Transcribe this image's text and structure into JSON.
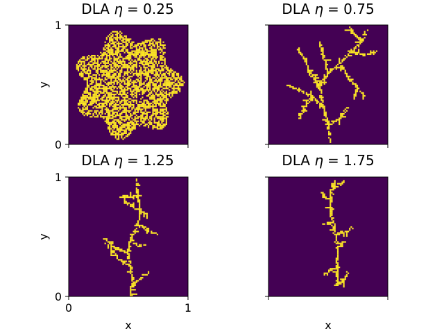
{
  "figure": {
    "background": "#ffffff",
    "cmap": {
      "low": "#440154",
      "high": "#fde725"
    },
    "panels": [
      {
        "id": "p025",
        "title_prefix": "DLA ",
        "title_symbol": "η",
        "title_value": "= 0.25"
      },
      {
        "id": "p075",
        "title_prefix": "DLA ",
        "title_symbol": "η",
        "title_value": "= 0.75"
      },
      {
        "id": "p125",
        "title_prefix": "DLA ",
        "title_symbol": "η",
        "title_value": "= 1.25"
      },
      {
        "id": "p175",
        "title_prefix": "DLA ",
        "title_symbol": "η",
        "title_value": "= 1.75"
      }
    ]
  },
  "chart_data": [
    {
      "type": "heatmap",
      "title": "DLA η = 0.25",
      "xlabel": "",
      "ylabel": "y",
      "xlim": [
        0,
        1
      ],
      "ylim": [
        0,
        1
      ],
      "xticks": [],
      "yticks": [
        "0",
        "1"
      ],
      "cluster": {
        "kind": "dense-disk",
        "center": [
          0.5,
          0.5
        ],
        "radius": 0.46,
        "seed": 11
      }
    },
    {
      "type": "heatmap",
      "title": "DLA η = 0.75",
      "xlabel": "",
      "ylabel": "",
      "xlim": [
        0,
        1
      ],
      "ylim": [
        0,
        1
      ],
      "xticks": [],
      "yticks": [],
      "cluster": {
        "kind": "branches",
        "seed": 23,
        "paths": [
          [
            [
              0.52,
              0.02
            ],
            [
              0.5,
              0.15
            ],
            [
              0.46,
              0.32
            ],
            [
              0.43,
              0.48
            ],
            [
              0.5,
              0.6
            ],
            [
              0.6,
              0.68
            ],
            [
              0.7,
              0.78
            ],
            [
              0.78,
              0.86
            ],
            [
              0.82,
              0.95
            ]
          ],
          [
            [
              0.46,
              0.32
            ],
            [
              0.36,
              0.4
            ],
            [
              0.25,
              0.46
            ],
            [
              0.16,
              0.5
            ]
          ],
          [
            [
              0.43,
              0.48
            ],
            [
              0.34,
              0.62
            ],
            [
              0.3,
              0.72
            ],
            [
              0.24,
              0.8
            ]
          ],
          [
            [
              0.6,
              0.68
            ],
            [
              0.66,
              0.58
            ],
            [
              0.74,
              0.48
            ],
            [
              0.8,
              0.4
            ]
          ],
          [
            [
              0.7,
              0.78
            ],
            [
              0.8,
              0.74
            ],
            [
              0.9,
              0.78
            ]
          ],
          [
            [
              0.5,
              0.6
            ],
            [
              0.46,
              0.74
            ],
            [
              0.44,
              0.82
            ]
          ],
          [
            [
              0.36,
              0.4
            ],
            [
              0.3,
              0.3
            ],
            [
              0.26,
              0.22
            ]
          ],
          [
            [
              0.5,
              0.15
            ],
            [
              0.6,
              0.22
            ],
            [
              0.66,
              0.3
            ]
          ],
          [
            [
              0.74,
              0.48
            ],
            [
              0.72,
              0.38
            ]
          ],
          [
            [
              0.78,
              0.86
            ],
            [
              0.72,
              0.92
            ],
            [
              0.68,
              0.97
            ]
          ]
        ]
      }
    },
    {
      "type": "heatmap",
      "title": "DLA η = 1.25",
      "xlabel": "x",
      "ylabel": "y",
      "xlim": [
        0,
        1
      ],
      "ylim": [
        0,
        1
      ],
      "xticks": [
        "0",
        "1"
      ],
      "yticks": [
        "0",
        "1"
      ],
      "cluster": {
        "kind": "branches",
        "seed": 37,
        "paths": [
          [
            [
              0.52,
              0.0
            ],
            [
              0.54,
              0.12
            ],
            [
              0.52,
              0.24
            ],
            [
              0.5,
              0.36
            ],
            [
              0.52,
              0.48
            ],
            [
              0.58,
              0.6
            ],
            [
              0.6,
              0.72
            ],
            [
              0.58,
              0.84
            ],
            [
              0.56,
              0.96
            ]
          ],
          [
            [
              0.52,
              0.24
            ],
            [
              0.44,
              0.3
            ],
            [
              0.38,
              0.36
            ],
            [
              0.32,
              0.44
            ]
          ],
          [
            [
              0.5,
              0.36
            ],
            [
              0.4,
              0.4
            ],
            [
              0.34,
              0.46
            ],
            [
              0.3,
              0.48
            ]
          ],
          [
            [
              0.58,
              0.6
            ],
            [
              0.66,
              0.56
            ],
            [
              0.74,
              0.52
            ]
          ],
          [
            [
              0.6,
              0.72
            ],
            [
              0.52,
              0.76
            ],
            [
              0.46,
              0.8
            ]
          ],
          [
            [
              0.58,
              0.84
            ],
            [
              0.48,
              0.83
            ],
            [
              0.44,
              0.84
            ]
          ],
          [
            [
              0.54,
              0.12
            ],
            [
              0.62,
              0.16
            ],
            [
              0.66,
              0.2
            ]
          ],
          [
            [
              0.52,
              0.48
            ],
            [
              0.58,
              0.42
            ],
            [
              0.64,
              0.44
            ]
          ],
          [
            [
              0.6,
              0.72
            ],
            [
              0.66,
              0.7
            ]
          ]
        ]
      }
    },
    {
      "type": "heatmap",
      "title": "DLA η = 1.75",
      "xlabel": "x",
      "ylabel": "",
      "xlim": [
        0,
        1
      ],
      "ylim": [
        0,
        1
      ],
      "xticks": [],
      "yticks": [],
      "cluster": {
        "kind": "branches",
        "seed": 53,
        "paths": [
          [
            [
              0.58,
              0.1
            ],
            [
              0.58,
              0.25
            ],
            [
              0.58,
              0.4
            ],
            [
              0.56,
              0.52
            ],
            [
              0.54,
              0.62
            ],
            [
              0.52,
              0.72
            ],
            [
              0.52,
              0.8
            ],
            [
              0.54,
              0.9
            ],
            [
              0.56,
              0.97
            ]
          ],
          [
            [
              0.58,
              0.25
            ],
            [
              0.52,
              0.22
            ],
            [
              0.48,
              0.18
            ]
          ],
          [
            [
              0.58,
              0.4
            ],
            [
              0.64,
              0.46
            ]
          ],
          [
            [
              0.56,
              0.52
            ],
            [
              0.66,
              0.54
            ],
            [
              0.7,
              0.58
            ]
          ],
          [
            [
              0.54,
              0.62
            ],
            [
              0.46,
              0.6
            ]
          ],
          [
            [
              0.52,
              0.8
            ],
            [
              0.46,
              0.84
            ],
            [
              0.44,
              0.88
            ]
          ],
          [
            [
              0.54,
              0.9
            ],
            [
              0.6,
              0.94
            ],
            [
              0.64,
              0.97
            ]
          ],
          [
            [
              0.58,
              0.1
            ],
            [
              0.64,
              0.14
            ],
            [
              0.66,
              0.2
            ]
          ]
        ]
      }
    }
  ]
}
